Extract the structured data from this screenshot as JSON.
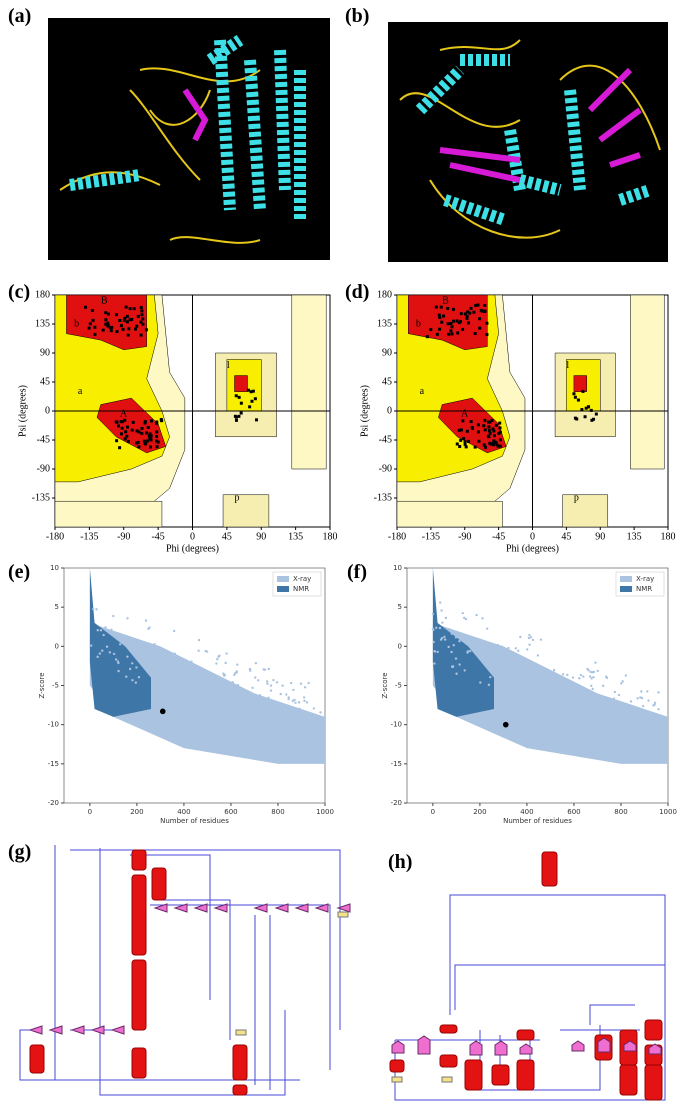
{
  "panel_labels": [
    "(a)",
    "(b)",
    "(c)",
    "(d)",
    "(e)",
    "(f)",
    "(g)",
    "(h)"
  ],
  "ramachandran": [
    {
      "x_label": "Phi (degrees)",
      "y_label": "Psi (degrees)",
      "xlim": [
        -180,
        180
      ],
      "ylim": [
        -180,
        180
      ],
      "xticks": [
        -180,
        -135,
        -90,
        -45,
        0,
        45,
        90,
        135,
        180
      ],
      "yticks": [
        180,
        135,
        90,
        45,
        0,
        -45,
        -90,
        -135
      ],
      "region_labels": [
        "B",
        "b",
        "a",
        "A",
        "l",
        "p"
      ]
    },
    {
      "x_label": "Phi (degrees)",
      "y_label": "Psi (degrees)",
      "xlim": [
        -180,
        180
      ],
      "ylim": [
        -180,
        180
      ],
      "xticks": [
        -180,
        -135,
        -90,
        -45,
        0,
        45,
        90,
        135,
        180
      ],
      "yticks": [
        180,
        135,
        90,
        45,
        0,
        -45,
        -90,
        -135
      ],
      "region_labels": [
        "B",
        "b",
        "a",
        "A",
        "l",
        "p"
      ]
    }
  ],
  "zscore": [
    {
      "x_label": "Number of residues",
      "y_label": "Z-score",
      "xlim": [
        -110,
        1000
      ],
      "ylim": [
        -20,
        10
      ],
      "xticks": [
        0,
        200,
        400,
        600,
        800,
        1000
      ],
      "yticks": [
        10,
        5,
        0,
        -5,
        -10,
        -15,
        -20
      ],
      "legend": [
        {
          "name": "X-ray",
          "color": "#a9c3e0"
        },
        {
          "name": "NMR",
          "color": "#3f76a8"
        }
      ],
      "query_point": {
        "residues": 310,
        "zscore": -8.3
      }
    },
    {
      "x_label": "Number of residues",
      "y_label": "Z-score",
      "xlim": [
        -110,
        1000
      ],
      "ylim": [
        -20,
        10
      ],
      "xticks": [
        0,
        200,
        400,
        600,
        800,
        1000
      ],
      "yticks": [
        10,
        5,
        0,
        -5,
        -10,
        -15,
        -20
      ],
      "legend": [
        {
          "name": "X-ray",
          "color": "#a9c3e0"
        },
        {
          "name": "NMR",
          "color": "#3f76a8"
        }
      ],
      "query_point": {
        "residues": 310,
        "zscore": -10
      }
    }
  ]
}
